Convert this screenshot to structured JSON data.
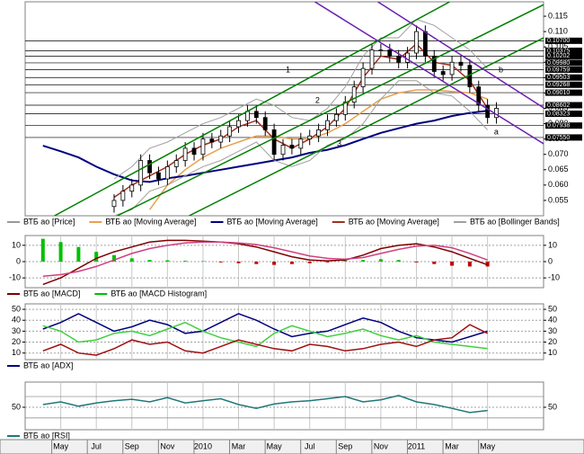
{
  "x_axis": {
    "xlim": [
      -2,
      27.15
    ],
    "xticks": [
      {
        "value": 0,
        "label": "May"
      },
      {
        "value": 2,
        "label": "Jul"
      },
      {
        "value": 4,
        "label": "Sep"
      },
      {
        "value": 6,
        "label": "Nov"
      },
      {
        "value": 8,
        "label": "2010"
      },
      {
        "value": 10,
        "label": "Mar"
      },
      {
        "value": 12,
        "label": "May"
      },
      {
        "value": 14,
        "label": "Jul"
      },
      {
        "value": 16,
        "label": "Sep"
      },
      {
        "value": 18,
        "label": "Nov"
      },
      {
        "value": 20,
        "label": "2011"
      },
      {
        "value": 22,
        "label": "Mar"
      },
      {
        "value": 24,
        "label": "May"
      }
    ]
  },
  "chart_data": [
    {
      "type": "candlestick",
      "ylim": [
        0.05,
        0.1197
      ],
      "yticks": [
        {
          "value": 0.115,
          "label": "0.115"
        },
        {
          "value": 0.11,
          "label": "0.110"
        },
        {
          "value": 0.105,
          "label": "0.105"
        },
        {
          "value": 0.1,
          "label": "0.100"
        },
        {
          "value": 0.095,
          "label": "0.095"
        },
        {
          "value": 0.09,
          "label": "0.090"
        },
        {
          "value": 0.085,
          "label": "0.085"
        },
        {
          "value": 0.08,
          "label": "0.080"
        },
        {
          "value": 0.075,
          "label": "0.075"
        },
        {
          "value": 0.07,
          "label": "0.070"
        },
        {
          "value": 0.065,
          "label": "0.065"
        },
        {
          "value": 0.06,
          "label": "0.060"
        },
        {
          "value": 0.055,
          "label": "0.055"
        }
      ],
      "candles": {
        "name": "ВТБ ао [Price]",
        "color": "#999999",
        "x": [
          3,
          3.5,
          4,
          4.5,
          5,
          5.5,
          6,
          6.5,
          7,
          7.5,
          8,
          8.5,
          9,
          9.5,
          10,
          10.5,
          11,
          11.5,
          12,
          12.5,
          13,
          13.5,
          14,
          14.5,
          15,
          15.5,
          16,
          16.5,
          17,
          17.5,
          18,
          18.5,
          19,
          19.5,
          20,
          20.5,
          21,
          21.5,
          22,
          22.5,
          23,
          23.5,
          24,
          24.5
        ],
        "open": [
          0.053,
          0.055,
          0.058,
          0.06,
          0.068,
          0.064,
          0.062,
          0.066,
          0.068,
          0.072,
          0.07,
          0.075,
          0.074,
          0.076,
          0.079,
          0.081,
          0.084,
          0.082,
          0.078,
          0.07,
          0.073,
          0.072,
          0.075,
          0.076,
          0.078,
          0.081,
          0.083,
          0.087,
          0.092,
          0.098,
          0.104,
          0.104,
          0.102,
          0.1,
          0.103,
          0.11,
          0.102,
          0.097,
          0.096,
          0.1,
          0.099,
          0.092,
          0.086,
          0.082
        ],
        "high": [
          0.057,
          0.06,
          0.062,
          0.07,
          0.07,
          0.066,
          0.068,
          0.07,
          0.074,
          0.074,
          0.077,
          0.077,
          0.078,
          0.081,
          0.083,
          0.086,
          0.086,
          0.084,
          0.08,
          0.075,
          0.075,
          0.077,
          0.078,
          0.08,
          0.083,
          0.085,
          0.089,
          0.094,
          0.1,
          0.106,
          0.106,
          0.106,
          0.104,
          0.105,
          0.112,
          0.112,
          0.104,
          0.099,
          0.102,
          0.102,
          0.101,
          0.094,
          0.088,
          0.087
        ],
        "low": [
          0.051,
          0.053,
          0.056,
          0.058,
          0.062,
          0.06,
          0.06,
          0.064,
          0.066,
          0.068,
          0.068,
          0.072,
          0.072,
          0.074,
          0.077,
          0.079,
          0.08,
          0.076,
          0.068,
          0.068,
          0.07,
          0.07,
          0.073,
          0.074,
          0.076,
          0.079,
          0.081,
          0.085,
          0.09,
          0.096,
          0.102,
          0.1,
          0.098,
          0.098,
          0.101,
          0.1,
          0.095,
          0.094,
          0.094,
          0.097,
          0.09,
          0.084,
          0.08,
          0.08
        ],
        "close": [
          0.055,
          0.058,
          0.06,
          0.068,
          0.064,
          0.062,
          0.066,
          0.068,
          0.072,
          0.07,
          0.075,
          0.074,
          0.076,
          0.079,
          0.081,
          0.084,
          0.082,
          0.078,
          0.07,
          0.073,
          0.072,
          0.075,
          0.076,
          0.078,
          0.081,
          0.083,
          0.087,
          0.092,
          0.098,
          0.104,
          0.104,
          0.102,
          0.1,
          0.103,
          0.11,
          0.102,
          0.097,
          0.096,
          0.1,
          0.099,
          0.092,
          0.086,
          0.082,
          0.085
        ]
      },
      "x": [
        -1,
        0,
        1,
        2,
        3,
        4,
        5,
        6,
        7,
        8,
        9,
        10,
        11,
        12,
        13,
        14,
        15,
        16,
        17,
        18,
        19,
        20,
        21,
        22,
        23,
        24
      ],
      "series": [
        {
          "name": "ВТБ ао [Moving Average]",
          "color": "#e8a050",
          "values": [
            null,
            null,
            null,
            null,
            null,
            null,
            0.052,
            0.06,
            0.065,
            0.069,
            0.072,
            0.074,
            0.076,
            0.076,
            0.075,
            0.075,
            0.077,
            0.08,
            0.084,
            0.088,
            0.09,
            0.091,
            0.091,
            0.0905,
            0.09,
            0.088
          ]
        },
        {
          "name": "ВТБ ао [Moving Average]",
          "color": "#000080",
          "values": [
            0.0728,
            0.071,
            0.069,
            0.066,
            0.0635,
            0.0615,
            0.061,
            0.0622,
            0.063,
            0.064,
            0.065,
            0.066,
            0.067,
            0.068,
            0.069,
            0.0705,
            0.0715,
            0.073,
            0.075,
            0.077,
            0.0785,
            0.08,
            0.081,
            0.0825,
            0.0835,
            0.0842
          ]
        },
        {
          "name": "ВТБ ао [Moving Average]",
          "color": "#a03020",
          "values": [
            null,
            null,
            null,
            null,
            0.056,
            0.06,
            0.063,
            0.066,
            0.07,
            0.073,
            0.075,
            0.079,
            0.081,
            0.075,
            0.072,
            0.075,
            0.079,
            0.085,
            0.095,
            0.102,
            0.101,
            0.106,
            0.1,
            0.099,
            0.094,
            0.085
          ]
        },
        {
          "name": "ВТБ ао [Bollinger Bands]",
          "color": "#a0a0a0",
          "upper": [
            null,
            null,
            null,
            null,
            0.062,
            0.066,
            0.072,
            0.074,
            0.077,
            0.08,
            0.082,
            0.085,
            0.088,
            0.086,
            0.082,
            0.081,
            0.085,
            0.092,
            0.102,
            0.108,
            0.108,
            0.114,
            0.112,
            0.108,
            0.104,
            0.098
          ],
          "lower": [
            null,
            null,
            null,
            null,
            0.05,
            0.052,
            0.058,
            0.06,
            0.063,
            0.066,
            0.068,
            0.071,
            0.074,
            0.068,
            0.066,
            0.068,
            0.073,
            0.075,
            0.08,
            0.088,
            0.094,
            0.094,
            0.09,
            0.089,
            0.084,
            0.078
          ]
        }
      ],
      "levels": [
        {
          "value": 0.107,
          "label": "0.10700"
        },
        {
          "value": 0.10375,
          "label": "0.10375"
        },
        {
          "value": 0.10202,
          "label": "0.10202"
        },
        {
          "value": 0.0998,
          "label": "0.09980"
        },
        {
          "value": 0.09759,
          "label": "0.09759"
        },
        {
          "value": 0.09503,
          "label": "0.09503"
        },
        {
          "value": 0.09268,
          "label": "0.09268"
        },
        {
          "value": 0.0901,
          "label": "0.09010"
        },
        {
          "value": 0.08602,
          "label": "0.08602"
        },
        {
          "value": 0.08323,
          "label": "0.08323"
        },
        {
          "value": 0.07938,
          "label": "0.07938"
        },
        {
          "value": 0.0755,
          "label": "0.07550"
        }
      ],
      "trendlines": [
        {
          "label": "1",
          "color": "#008000",
          "points": [
            [
              -0.35,
              0.05
            ],
            [
              21.87,
              0.1197
            ]
          ],
          "label_at": [
            12.78,
            0.0974
          ]
        },
        {
          "label": "2",
          "color": "#008000",
          "points": [
            [
              3.18,
              0.05
            ],
            [
              27.17,
              0.1188
            ]
          ],
          "label_at": [
            14.44,
            0.0875
          ]
        },
        {
          "label": "3",
          "color": "#008000",
          "points": [
            [
              7.22,
              0.05
            ],
            [
              27.17,
              0.108
            ]
          ],
          "label_at": [
            15.66,
            0.0734
          ]
        },
        {
          "label": "b",
          "color": "#6a1fb0",
          "points": [
            [
              17.83,
              0.1197
            ],
            [
              27.17,
              0.0851
            ]
          ],
          "label_at": [
            24.75,
            0.0974
          ]
        },
        {
          "label": "a",
          "color": "#6a1fb0",
          "points": [
            [
              14.29,
              0.1197
            ],
            [
              27.17,
              0.0734
            ]
          ],
          "label_at": [
            24.49,
            0.0772
          ]
        }
      ]
    },
    {
      "type": "macd",
      "ylim": [
        -16,
        16
      ],
      "yticks": [
        -10,
        0,
        10
      ],
      "x": [
        -1,
        0,
        1,
        2,
        3,
        4,
        5,
        6,
        7,
        8,
        9,
        10,
        11,
        12,
        13,
        14,
        15,
        16,
        17,
        18,
        19,
        20,
        21,
        22,
        23,
        24
      ],
      "histogram": {
        "name": "ВТБ ао [MACD Histogram]",
        "color": "#00c000",
        "negative_color": "#c00000",
        "values": [
          14,
          12,
          9,
          6,
          4,
          2,
          1,
          0.8,
          0.5,
          0.3,
          -0.5,
          -1,
          -1.5,
          -2,
          -1.5,
          -1,
          -0.5,
          0.5,
          1,
          1.5,
          1,
          -0.5,
          -1.5,
          -2.5,
          -3,
          -3
        ]
      },
      "series": [
        {
          "name": "ВТБ ао [MACD]",
          "color": "#800000",
          "values": [
            -14,
            -10,
            -4,
            2,
            6,
            9,
            12,
            13,
            13,
            12.5,
            12,
            11,
            9,
            6,
            3,
            1,
            0.5,
            1,
            4,
            8,
            10,
            11,
            9,
            6,
            2,
            -2
          ]
        },
        {
          "color": "#d04080",
          "values": [
            -9,
            -8,
            -6,
            -3,
            1,
            5,
            8,
            10,
            11.5,
            12,
            12,
            11.5,
            10.5,
            8.5,
            6,
            3.5,
            2,
            1.5,
            2.5,
            5,
            7.5,
            9.5,
            10,
            8.5,
            5,
            1
          ]
        }
      ]
    },
    {
      "type": "line",
      "ylim": [
        4,
        55
      ],
      "yticks": [
        10,
        20,
        30,
        40,
        50
      ],
      "x": [
        -1,
        0,
        1,
        2,
        3,
        4,
        5,
        6,
        7,
        8,
        9,
        10,
        11,
        12,
        13,
        14,
        15,
        16,
        17,
        18,
        19,
        20,
        21,
        22,
        23,
        24
      ],
      "series": [
        {
          "name": "ВТБ ао [ADX]",
          "color": "#000080",
          "values": [
            32,
            38,
            46,
            38,
            30,
            34,
            40,
            36,
            28,
            30,
            38,
            46,
            40,
            32,
            25,
            28,
            30,
            36,
            42,
            38,
            30,
            24,
            22,
            20,
            25,
            30
          ]
        },
        {
          "color": "#40d040",
          "values": [
            35,
            30,
            20,
            22,
            28,
            30,
            26,
            32,
            38,
            30,
            24,
            20,
            16,
            28,
            35,
            30,
            25,
            28,
            32,
            26,
            22,
            26,
            20,
            18,
            16,
            14
          ]
        },
        {
          "color": "#a01010",
          "values": [
            12,
            18,
            10,
            8,
            14,
            22,
            18,
            20,
            12,
            10,
            16,
            22,
            18,
            14,
            12,
            18,
            16,
            12,
            14,
            18,
            20,
            16,
            22,
            24,
            36,
            28
          ]
        }
      ]
    },
    {
      "type": "line",
      "ylim": [
        8,
        97
      ],
      "yticks": [
        50
      ],
      "levels": [
        30,
        70
      ],
      "x": [
        -1,
        0,
        1,
        2,
        3,
        4,
        5,
        6,
        7,
        8,
        9,
        10,
        11,
        12,
        13,
        14,
        15,
        16,
        17,
        18,
        19,
        20,
        21,
        22,
        23,
        24
      ],
      "series": [
        {
          "name": "ВТБ ао [RSI]",
          "color": "#207878",
          "values": [
            55,
            60,
            52,
            58,
            62,
            65,
            60,
            68,
            58,
            62,
            66,
            55,
            48,
            56,
            60,
            62,
            66,
            70,
            60,
            64,
            72,
            60,
            55,
            48,
            40,
            44
          ]
        }
      ]
    }
  ]
}
